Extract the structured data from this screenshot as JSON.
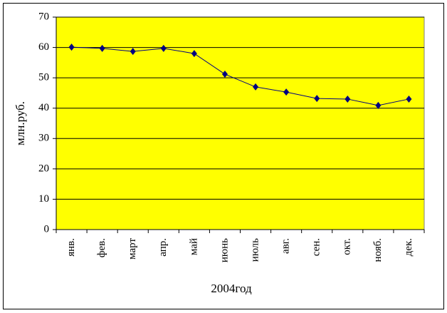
{
  "chart_data": {
    "type": "line",
    "categories": [
      "янв.",
      "фев.",
      "март",
      "апр.",
      "май",
      "июнь",
      "июль",
      "авг.",
      "сен.",
      "окт.",
      "нояб.",
      "дек."
    ],
    "series": [
      {
        "color": "#000080",
        "values": [
          60.1,
          59.7,
          58.7,
          59.7,
          58.0,
          51.2,
          47.0,
          45.3,
          43.2,
          43.0,
          40.9,
          43.0
        ]
      }
    ],
    "xlabel": "2004год",
    "ylabel": "млн.руб.",
    "ylim": [
      0,
      70
    ],
    "yticks": [
      0,
      10,
      20,
      30,
      40,
      50,
      60,
      70
    ],
    "grid": true,
    "plot_background": "#ffff00"
  }
}
